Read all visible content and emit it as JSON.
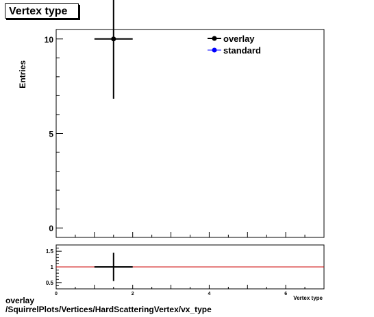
{
  "title": "Vertex type",
  "footer": {
    "line1": "overlay",
    "line2": "/SquirrelPlots/Vertices/HardScatteringVertex/vx_type"
  },
  "colors": {
    "overlay": "#000000",
    "standard": "#0000ff",
    "ratio_line": "#cc0000"
  },
  "chart_data": [
    {
      "type": "scatter",
      "title": "Vertex type",
      "ylabel": "Entries",
      "xlim": [
        0,
        7
      ],
      "ylim": [
        -0.5,
        10.5
      ],
      "yticks": [
        0,
        5,
        10
      ],
      "xticks": [
        0,
        2,
        4,
        6
      ],
      "legend": {
        "placement": "top-right",
        "entries": [
          "overlay",
          "standard"
        ]
      },
      "series": [
        {
          "name": "overlay",
          "points": [
            {
              "x": 1.5,
              "xerr": 0.5,
              "y": 10,
              "yerr": 3.16
            }
          ]
        },
        {
          "name": "standard",
          "points": []
        }
      ]
    },
    {
      "type": "scatter",
      "xlabel": "Vertex type",
      "xlim": [
        0,
        7
      ],
      "ylim": [
        0.3,
        1.7
      ],
      "yticks": [
        0.5,
        1,
        1.5
      ],
      "xticks": [
        0,
        2,
        4,
        6
      ],
      "reference_line": 1,
      "series": [
        {
          "name": "ratio",
          "points": [
            {
              "x": 1.5,
              "xerr": 0.5,
              "y": 1,
              "yerr": 0.45
            }
          ]
        }
      ]
    }
  ]
}
